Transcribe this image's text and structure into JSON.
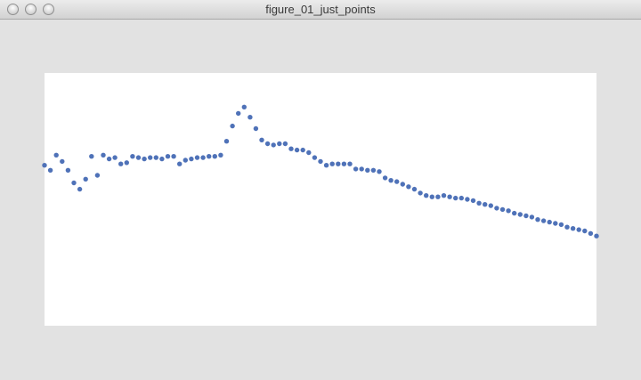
{
  "window": {
    "title": "figure_01_just_points",
    "buttons": {
      "close": "close",
      "minimize": "minimize",
      "zoom": "zoom"
    }
  },
  "colors": {
    "background": "#e2e2e2",
    "plot_background": "#ffffff",
    "point": "#4f72b8"
  },
  "chart_data": {
    "type": "scatter",
    "grid": false,
    "axes_visible": false,
    "xlim": [
      0,
      94
    ],
    "ylim": [
      -100,
      100
    ],
    "series": [
      {
        "x": [
          0,
          1,
          2,
          3,
          4,
          5,
          6,
          7,
          8,
          9,
          10,
          11,
          12,
          13,
          14,
          15,
          16,
          17,
          18,
          19,
          20,
          21,
          22,
          23,
          24,
          25,
          26,
          27,
          28,
          29,
          30,
          31,
          32,
          33,
          34,
          35,
          36,
          37,
          38,
          39,
          40,
          41,
          42,
          43,
          44,
          45,
          46,
          47,
          48,
          49,
          50,
          51,
          52,
          53,
          54,
          55,
          56,
          57,
          58,
          59,
          60,
          61,
          62,
          63,
          64,
          65,
          66,
          67,
          68,
          69,
          70,
          71,
          72,
          73,
          74,
          75,
          76,
          77,
          78,
          79,
          80,
          81,
          82,
          83,
          84,
          85,
          86,
          87,
          88,
          89,
          90,
          91,
          92,
          93,
          94
        ],
        "y": [
          27,
          23,
          35,
          30,
          23,
          13,
          8,
          16,
          34,
          19,
          35,
          32,
          33,
          28,
          29,
          34,
          33,
          32,
          33,
          33,
          32,
          34,
          34,
          28,
          31,
          32,
          33,
          33,
          34,
          34,
          35,
          46,
          58,
          68,
          73,
          65,
          56,
          47,
          44,
          43,
          44,
          44,
          40,
          39,
          39,
          37,
          33,
          30,
          27,
          28,
          28,
          28,
          28,
          24,
          24,
          23,
          23,
          22,
          17,
          15,
          14,
          12,
          10,
          8,
          5,
          3,
          2,
          2,
          3,
          2,
          1,
          1,
          0,
          -1,
          -3,
          -4,
          -5,
          -7,
          -8,
          -9,
          -11,
          -12,
          -13,
          -14,
          -16,
          -17,
          -18,
          -19,
          -20,
          -22,
          -23,
          -24,
          -25,
          -27,
          -29
        ]
      }
    ]
  }
}
